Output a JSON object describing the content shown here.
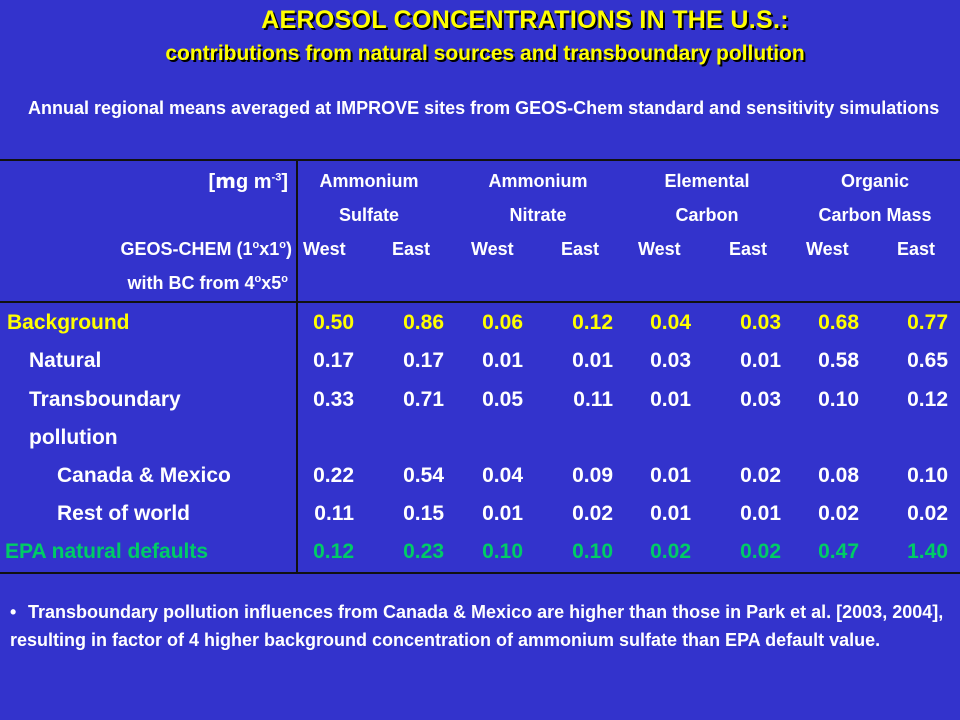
{
  "title": "AEROSOL CONCENTRATIONS IN THE U.S.:",
  "subtitle": "contributions from natural sources and transboundary pollution",
  "intro": "Annual regional means averaged at IMPROVE sites from GEOS-Chem standard and sensitivity simulations",
  "header": {
    "unit_prefix": "[",
    "unit_mu": "m",
    "unit_g": "g m",
    "unit_exp": "-3",
    "unit_suffix": "]",
    "model_a": "GEOS-CHEM (1",
    "model_deg1": "o",
    "model_b": "x1",
    "model_deg2": "o",
    "model_c": ")",
    "bc_a": "with BC from 4",
    "bc_deg1": "o",
    "bc_b": "x5",
    "bc_deg2": "o",
    "groups": [
      {
        "line1": "Ammonium",
        "line2": "Sulfate"
      },
      {
        "line1": "Ammonium",
        "line2": "Nitrate"
      },
      {
        "line1": "Elemental",
        "line2": "Carbon"
      },
      {
        "line1": "Organic",
        "line2": "Carbon Mass"
      }
    ],
    "west": "West",
    "east": "East"
  },
  "rows": [
    {
      "label": "Background",
      "values": [
        "0.50",
        "0.86",
        "0.06",
        "0.12",
        "0.04",
        "0.03",
        "0.68",
        "0.77"
      ]
    },
    {
      "label": "Natural",
      "values": [
        "0.17",
        "0.17",
        "0.01",
        "0.01",
        "0.03",
        "0.01",
        "0.58",
        "0.65"
      ]
    },
    {
      "label": "Transboundary",
      "values": [
        "0.33",
        "0.71",
        "0.05",
        "0.11",
        "0.01",
        "0.03",
        "0.10",
        "0.12"
      ]
    },
    {
      "label": "pollution",
      "values": []
    },
    {
      "label": "Canada & Mexico",
      "values": [
        "0.22",
        "0.54",
        "0.04",
        "0.09",
        "0.01",
        "0.02",
        "0.08",
        "0.10"
      ]
    },
    {
      "label": "Rest of world",
      "values": [
        "0.11",
        "0.15",
        "0.01",
        "0.02",
        "0.01",
        "0.01",
        "0.02",
        "0.02"
      ]
    },
    {
      "label": "EPA natural defaults",
      "values": [
        "0.12",
        "0.23",
        "0.10",
        "0.10",
        "0.02",
        "0.02",
        "0.47",
        "1.40"
      ]
    }
  ],
  "bullet": "Transboundary pollution influences from Canada & Mexico are higher than those in Park et al. [2003, 2004], resulting in factor of 4 higher background concentration of ammonium sulfate than EPA default value.",
  "bullet_marker": "•",
  "colors": {
    "background": "#3333cc",
    "title": "#ffff00",
    "highlight_row": "#ffff00",
    "epa_row": "#00cc66",
    "text": "#ffffff"
  }
}
